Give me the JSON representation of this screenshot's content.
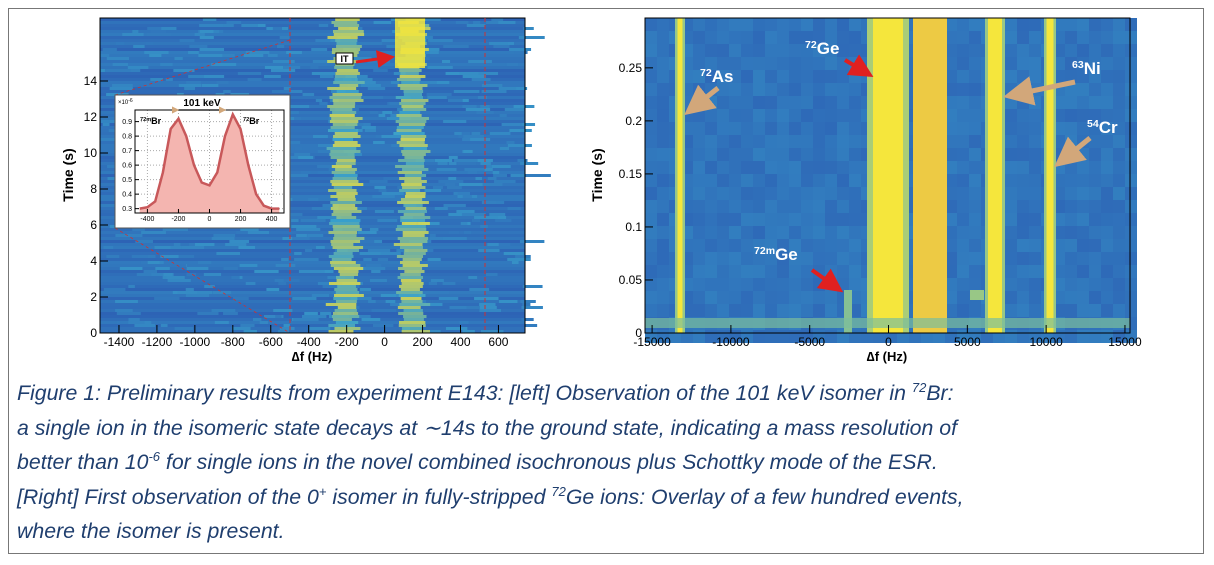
{
  "chart_data": [
    {
      "type": "heatmap",
      "ylabel": "Time (s)",
      "xlabel": "∆f (Hz)",
      "xlim": [
        -1500,
        740
      ],
      "ylim": [
        0,
        17.5
      ],
      "xticks": [
        -1400,
        -1200,
        -1000,
        -800,
        -600,
        -400,
        -200,
        0,
        200,
        400,
        600
      ],
      "yticks": [
        0,
        2,
        4,
        6,
        8,
        10,
        12,
        14
      ],
      "annotations": [
        {
          "text": "IT"
        }
      ],
      "inset": {
        "type": "line",
        "title": "101 keV",
        "multiplier": "×10",
        "multiplier_exp": "-6",
        "labels": [
          {
            "sup": "72m",
            "text": "Br"
          },
          {
            "sup": "72",
            "text": "Br"
          }
        ],
        "color": "#c8585a",
        "fill": "#f4b5b0",
        "xlim": [
          -480,
          480
        ],
        "ylim": [
          0.27,
          0.98
        ],
        "xticks": [
          -400,
          -200,
          0,
          200,
          400
        ],
        "yticks": [
          0.3,
          0.4,
          0.5,
          0.6,
          0.7,
          0.8,
          0.9
        ],
        "x": [
          -450,
          -400,
          -350,
          -300,
          -250,
          -200,
          -150,
          -100,
          -50,
          0,
          50,
          100,
          150,
          200,
          250,
          300,
          350,
          400,
          450
        ],
        "values": [
          0.3,
          0.31,
          0.35,
          0.55,
          0.85,
          0.92,
          0.8,
          0.6,
          0.48,
          0.46,
          0.55,
          0.8,
          0.95,
          0.85,
          0.6,
          0.4,
          0.32,
          0.3,
          0.3
        ]
      }
    },
    {
      "type": "heatmap",
      "ylabel": "Time (s)",
      "xlabel": "∆f (Hz)",
      "xlim": [
        -15450,
        15320
      ],
      "ylim": [
        0,
        0.297
      ],
      "xticks": [
        -15000,
        -10000,
        -5000,
        0,
        5000,
        10000,
        15000
      ],
      "yticks": [
        0,
        0.05,
        0.1,
        0.15,
        0.2,
        0.25
      ],
      "annotations": [
        {
          "sup": "72",
          "text": "As"
        },
        {
          "sup": "72",
          "text": "Ge"
        },
        {
          "sup": "63",
          "text": "Ni"
        },
        {
          "sup": "54",
          "text": "Cr"
        },
        {
          "sup": "72m",
          "text": "Ge"
        }
      ]
    }
  ],
  "caption": [
    [
      {
        "text": "Figure 1: Preliminary results from experiment E143: [left] Observation of the 101 keV isomer in "
      },
      {
        "sup": "72"
      },
      {
        "text": "Br:"
      }
    ],
    [
      {
        "text": "a single ion in the isomeric state decays at ∼14s to the ground state, indicating a mass resolution of"
      }
    ],
    [
      {
        "text": "better than 10"
      },
      {
        "sup": "-6"
      },
      {
        "text": " for single ions in the novel combined isochronous plus Schottky mode of the ESR."
      }
    ],
    [
      {
        "text": "[Right] First observation of the 0"
      },
      {
        "sup": "+"
      },
      {
        "text": " isomer in fully-stripped "
      },
      {
        "sup": "72"
      },
      {
        "text": "Ge ions: Overlay of a few hundred events,"
      }
    ],
    [
      {
        "text": "where the isomer is present."
      }
    ]
  ]
}
